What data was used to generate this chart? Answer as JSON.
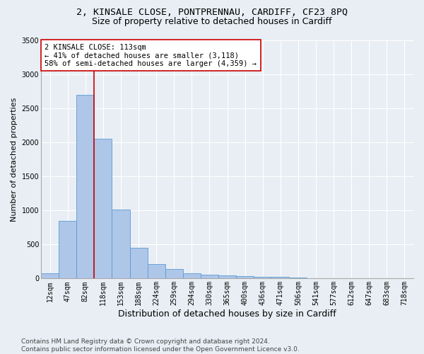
{
  "title1": "2, KINSALE CLOSE, PONTPRENNAU, CARDIFF, CF23 8PQ",
  "title2": "Size of property relative to detached houses in Cardiff",
  "xlabel": "Distribution of detached houses by size in Cardiff",
  "ylabel": "Number of detached properties",
  "categories": [
    "12sqm",
    "47sqm",
    "82sqm",
    "118sqm",
    "153sqm",
    "188sqm",
    "224sqm",
    "259sqm",
    "294sqm",
    "330sqm",
    "365sqm",
    "400sqm",
    "436sqm",
    "471sqm",
    "506sqm",
    "541sqm",
    "577sqm",
    "612sqm",
    "647sqm",
    "683sqm",
    "718sqm"
  ],
  "values": [
    80,
    850,
    2700,
    2050,
    1010,
    450,
    210,
    135,
    80,
    55,
    50,
    40,
    30,
    25,
    10,
    5,
    5,
    3,
    2,
    2,
    2
  ],
  "bar_color": "#aec6e8",
  "bar_edge_color": "#5b9bd5",
  "background_color": "#e8eef4",
  "grid_color": "#ffffff",
  "vline_color": "#cc0000",
  "annotation_text": "2 KINSALE CLOSE: 113sqm\n← 41% of detached houses are smaller (3,118)\n58% of semi-detached houses are larger (4,359) →",
  "annotation_box_color": "#ffffff",
  "annotation_box_edge_color": "#cc0000",
  "ylim": [
    0,
    3500
  ],
  "yticks": [
    0,
    500,
    1000,
    1500,
    2000,
    2500,
    3000,
    3500
  ],
  "footer_text": "Contains HM Land Registry data © Crown copyright and database right 2024.\nContains public sector information licensed under the Open Government Licence v3.0.",
  "title1_fontsize": 9.5,
  "title2_fontsize": 9,
  "xlabel_fontsize": 9,
  "ylabel_fontsize": 8,
  "tick_fontsize": 7,
  "annotation_fontsize": 7.5,
  "footer_fontsize": 6.5
}
